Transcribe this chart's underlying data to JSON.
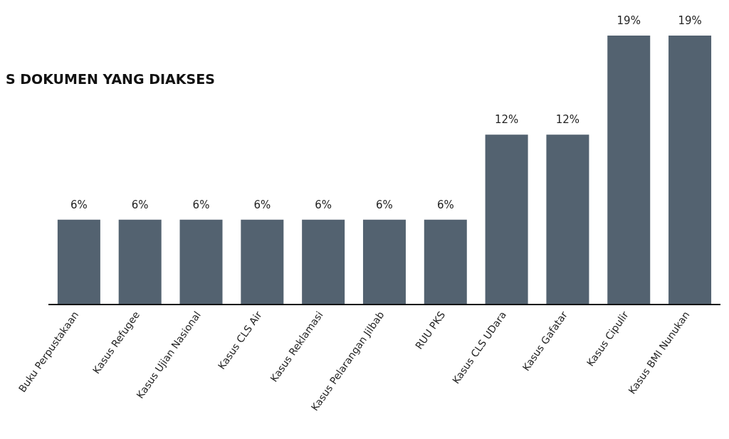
{
  "chart_data": {
    "type": "bar",
    "title": "S DOKUMEN YANG DIAKSES",
    "categories": [
      "Buku Perpustakaan",
      "Kasus Refugee",
      "Kasus Ujian Nasional",
      "Kasus CLS Air",
      "Kasus Reklamasi",
      "Kasus Pelarangan Jilbab",
      "RUU PKS",
      "Kasus CLS UDara",
      "Kasus Gafatar",
      "Kasus Cipulir",
      "Kasus BMI Nunukan"
    ],
    "values": [
      6,
      6,
      6,
      6,
      6,
      6,
      6,
      12,
      12,
      19,
      19
    ],
    "value_labels": [
      "6%",
      "6%",
      "6%",
      "6%",
      "6%",
      "6%",
      "6%",
      "12%",
      "12%",
      "19%",
      "19%"
    ],
    "color": "#536270",
    "tick_labels": "x"
  }
}
